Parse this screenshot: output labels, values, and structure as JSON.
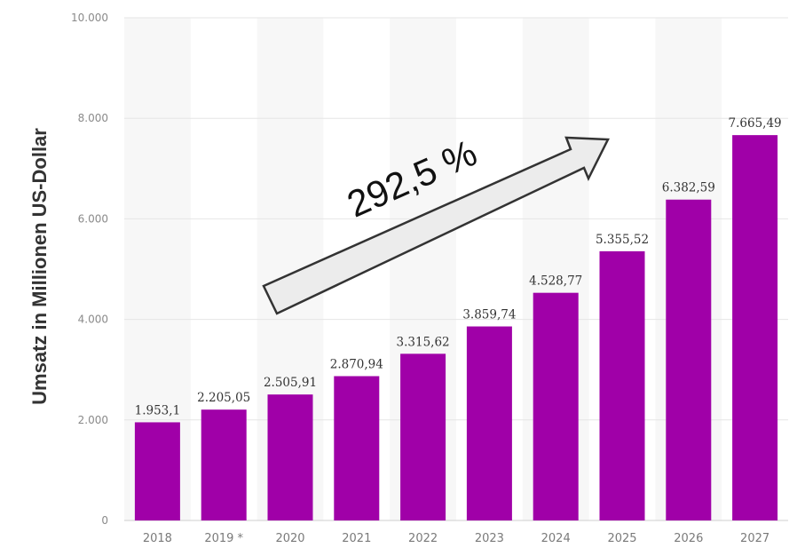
{
  "chart_data": {
    "type": "bar",
    "categories": [
      "2018",
      "2019 *",
      "2020",
      "2021",
      "2022",
      "2023",
      "2024",
      "2025",
      "2026",
      "2027"
    ],
    "values": [
      1953.1,
      2205.05,
      2505.91,
      2870.94,
      3315.62,
      3859.74,
      4528.77,
      5355.52,
      6382.59,
      7665.49
    ],
    "value_labels": [
      "1.953,1",
      "2.205,05",
      "2.505,91",
      "2.870,94",
      "3.315,62",
      "3.859,74",
      "4.528,77",
      "5.355,52",
      "6.382,59",
      "7.665,49"
    ],
    "ylabel": "Umsatz  in Millionen US-Dollar",
    "ylim": [
      0,
      10000
    ],
    "yticks": [
      0,
      2000,
      4000,
      6000,
      8000,
      10000
    ],
    "ytick_labels": [
      "0",
      "2.000",
      "4.000",
      "6.000",
      "8.000",
      "10.000"
    ],
    "annotation": "292,5 %",
    "bar_color": "#a000a8",
    "grid": true
  }
}
